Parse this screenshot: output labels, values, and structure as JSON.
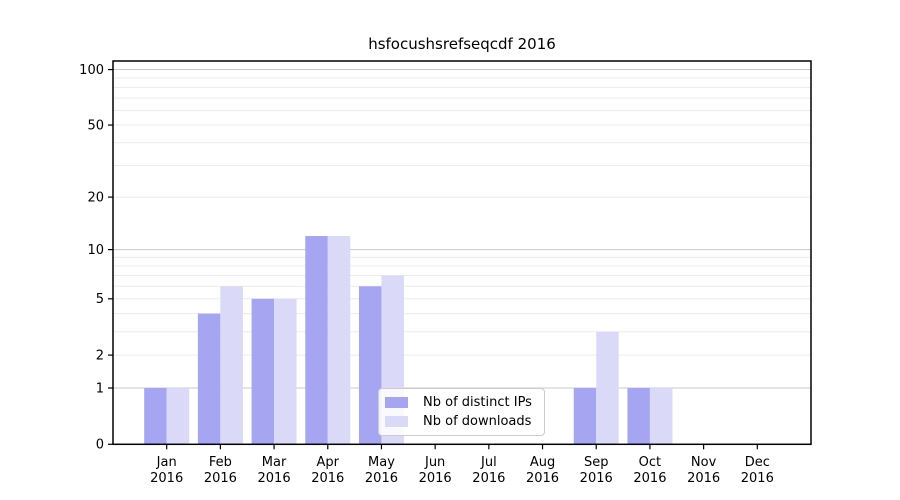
{
  "chart_data": {
    "type": "bar",
    "title": "hsfocushsrefseqcdf 2016",
    "xlabel": "",
    "ylabel": "",
    "categories": [
      "Jan",
      "Feb",
      "Mar",
      "Apr",
      "May",
      "Jun",
      "Jul",
      "Aug",
      "Sep",
      "Oct",
      "Nov",
      "Dec"
    ],
    "x_year_label": "2016",
    "series": [
      {
        "key": "distinct-ips",
        "name": "Nb of distinct IPs",
        "color": "#a5a5f2",
        "values": [
          1,
          4,
          5,
          12,
          6,
          0,
          0,
          0,
          1,
          1,
          0,
          0
        ]
      },
      {
        "key": "downloads",
        "name": "Nb of downloads",
        "color": "#dadaf8",
        "values": [
          1,
          6,
          5,
          12,
          7,
          0,
          0,
          0,
          3,
          1,
          0,
          0
        ]
      }
    ],
    "y_scale": "log1p",
    "ylim": [
      0,
      111
    ],
    "y_ticks": [
      {
        "value": 0,
        "label": "0"
      },
      {
        "value": 1,
        "label": "1"
      },
      {
        "value": 2,
        "label": "2"
      },
      {
        "value": 5,
        "label": "5"
      },
      {
        "value": 10,
        "label": "10"
      },
      {
        "value": 20,
        "label": "20"
      },
      {
        "value": 50,
        "label": "50"
      },
      {
        "value": 100,
        "label": "100"
      }
    ],
    "y_major_gridlines": [
      1,
      10,
      100
    ],
    "y_minor_gridlines": [
      2,
      3,
      4,
      5,
      6,
      7,
      8,
      9,
      20,
      30,
      40,
      50,
      60,
      70,
      80,
      90
    ],
    "grid": true,
    "legend_position": "lower center",
    "colors": {
      "grid_major": "#c8c8c8",
      "grid_minor": "#ececec",
      "axis": "#000000",
      "text": "#000000",
      "background": "#ffffff"
    }
  }
}
